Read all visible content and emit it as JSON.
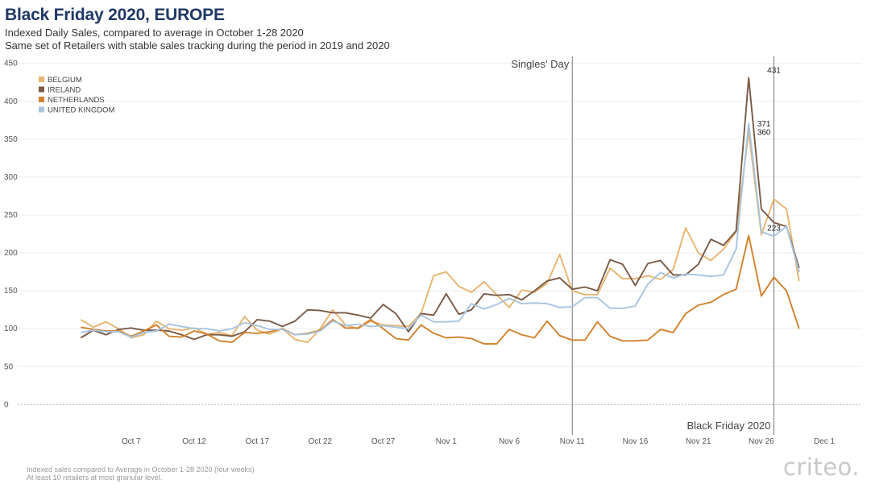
{
  "header": {
    "title": "Black Friday 2020, EUROPE",
    "subtitle1": "Indexed Daily Sales, compared to average in October 1-28 2020",
    "subtitle2": "Same set of Retailers with stable sales tracking during the period in 2019 and 2020"
  },
  "footer": {
    "note1": "Indexed sales compared to Average in October 1-28 2020 (four weeks)",
    "note2": "At least 10 retailers at most granular level.",
    "logo": "criteo."
  },
  "chart_data": {
    "type": "line",
    "x_start": "2020-10-03",
    "x_end": "2020-12-01",
    "xlim": [
      "2020-09-28",
      "2020-12-04"
    ],
    "ylim": [
      -40,
      455
    ],
    "yticks": [
      0,
      50,
      100,
      150,
      200,
      250,
      300,
      350,
      400,
      450
    ],
    "xticks": [
      {
        "date": "2020-10-07",
        "label": "Oct 7"
      },
      {
        "date": "2020-10-12",
        "label": "Oct 12"
      },
      {
        "date": "2020-10-17",
        "label": "Oct 17"
      },
      {
        "date": "2020-10-22",
        "label": "Oct 22"
      },
      {
        "date": "2020-10-27",
        "label": "Oct 27"
      },
      {
        "date": "2020-11-01",
        "label": "Nov 1"
      },
      {
        "date": "2020-11-06",
        "label": "Nov 6"
      },
      {
        "date": "2020-11-11",
        "label": "Nov 11"
      },
      {
        "date": "2020-11-16",
        "label": "Nov 16"
      },
      {
        "date": "2020-11-21",
        "label": "Nov 21"
      },
      {
        "date": "2020-11-26",
        "label": "Nov 26"
      },
      {
        "date": "2020-12-01",
        "label": "Dec 1"
      }
    ],
    "grid": true,
    "legend_position": "top-left",
    "series": [
      {
        "name": "BELGIUM",
        "color": "#e8b46f",
        "values": [
          112,
          102,
          109,
          100,
          88,
          92,
          110,
          100,
          98,
          101,
          93,
          95,
          91,
          116,
          98,
          93,
          100,
          86,
          82,
          100,
          125,
          105,
          100,
          110,
          105,
          104,
          103,
          120,
          170,
          175,
          156,
          148,
          162,
          145,
          128,
          151,
          148,
          160,
          198,
          150,
          145,
          145,
          180,
          166,
          166,
          170,
          165,
          178,
          233,
          200,
          190,
          205,
          228,
          360,
          224,
          271,
          258,
          163
        ]
      },
      {
        "name": "IRELAND",
        "color": "#7a5a47",
        "values": [
          88,
          98,
          92,
          99,
          101,
          98,
          98,
          97,
          92,
          86,
          92,
          92,
          90,
          96,
          112,
          110,
          103,
          110,
          125,
          124,
          121,
          121,
          118,
          114,
          132,
          120,
          96,
          120,
          118,
          146,
          119,
          125,
          146,
          144,
          145,
          138,
          150,
          163,
          167,
          152,
          155,
          150,
          191,
          185,
          157,
          186,
          190,
          171,
          171,
          185,
          218,
          210,
          229,
          431,
          258,
          240,
          235,
          180
        ]
      },
      {
        "name": "NETHERLANDS",
        "color": "#d1822e",
        "values": [
          102,
          99,
          97,
          97,
          90,
          97,
          105,
          90,
          89,
          97,
          93,
          84,
          82,
          95,
          94,
          96,
          100,
          92,
          94,
          98,
          112,
          101,
          101,
          112,
          100,
          87,
          85,
          105,
          94,
          88,
          89,
          87,
          80,
          80,
          99,
          92,
          88,
          110,
          91,
          85,
          85,
          109,
          90,
          84,
          84,
          85,
          99,
          95,
          120,
          131,
          135,
          145,
          152,
          223,
          143,
          168,
          150,
          100
        ]
      },
      {
        "name": "UNITED KINGDOM",
        "color": "#a8c4df",
        "values": [
          95,
          98,
          96,
          96,
          89,
          95,
          97,
          106,
          103,
          100,
          100,
          97,
          100,
          108,
          104,
          99,
          99,
          92,
          93,
          97,
          110,
          104,
          106,
          103,
          104,
          102,
          100,
          118,
          109,
          109,
          110,
          133,
          126,
          132,
          140,
          133,
          134,
          133,
          128,
          129,
          141,
          141,
          127,
          127,
          130,
          159,
          174,
          167,
          172,
          171,
          169,
          171,
          205,
          371,
          228,
          222,
          235,
          175
        ]
      }
    ],
    "vlines": [
      {
        "date": "2020-11-11",
        "label": "Singles' Day",
        "label_pos": "top"
      },
      {
        "date": "2020-11-27",
        "label": "Black Friday 2020",
        "label_pos": "bottom"
      }
    ],
    "data_labels": [
      {
        "date": "2020-11-27",
        "value": 431,
        "text": "431"
      },
      {
        "date": "2020-11-27",
        "value": 371,
        "text": "371"
      },
      {
        "date": "2020-11-27",
        "value": 360,
        "text": "360"
      },
      {
        "date": "2020-11-27",
        "value": 223,
        "text": "223"
      }
    ]
  }
}
